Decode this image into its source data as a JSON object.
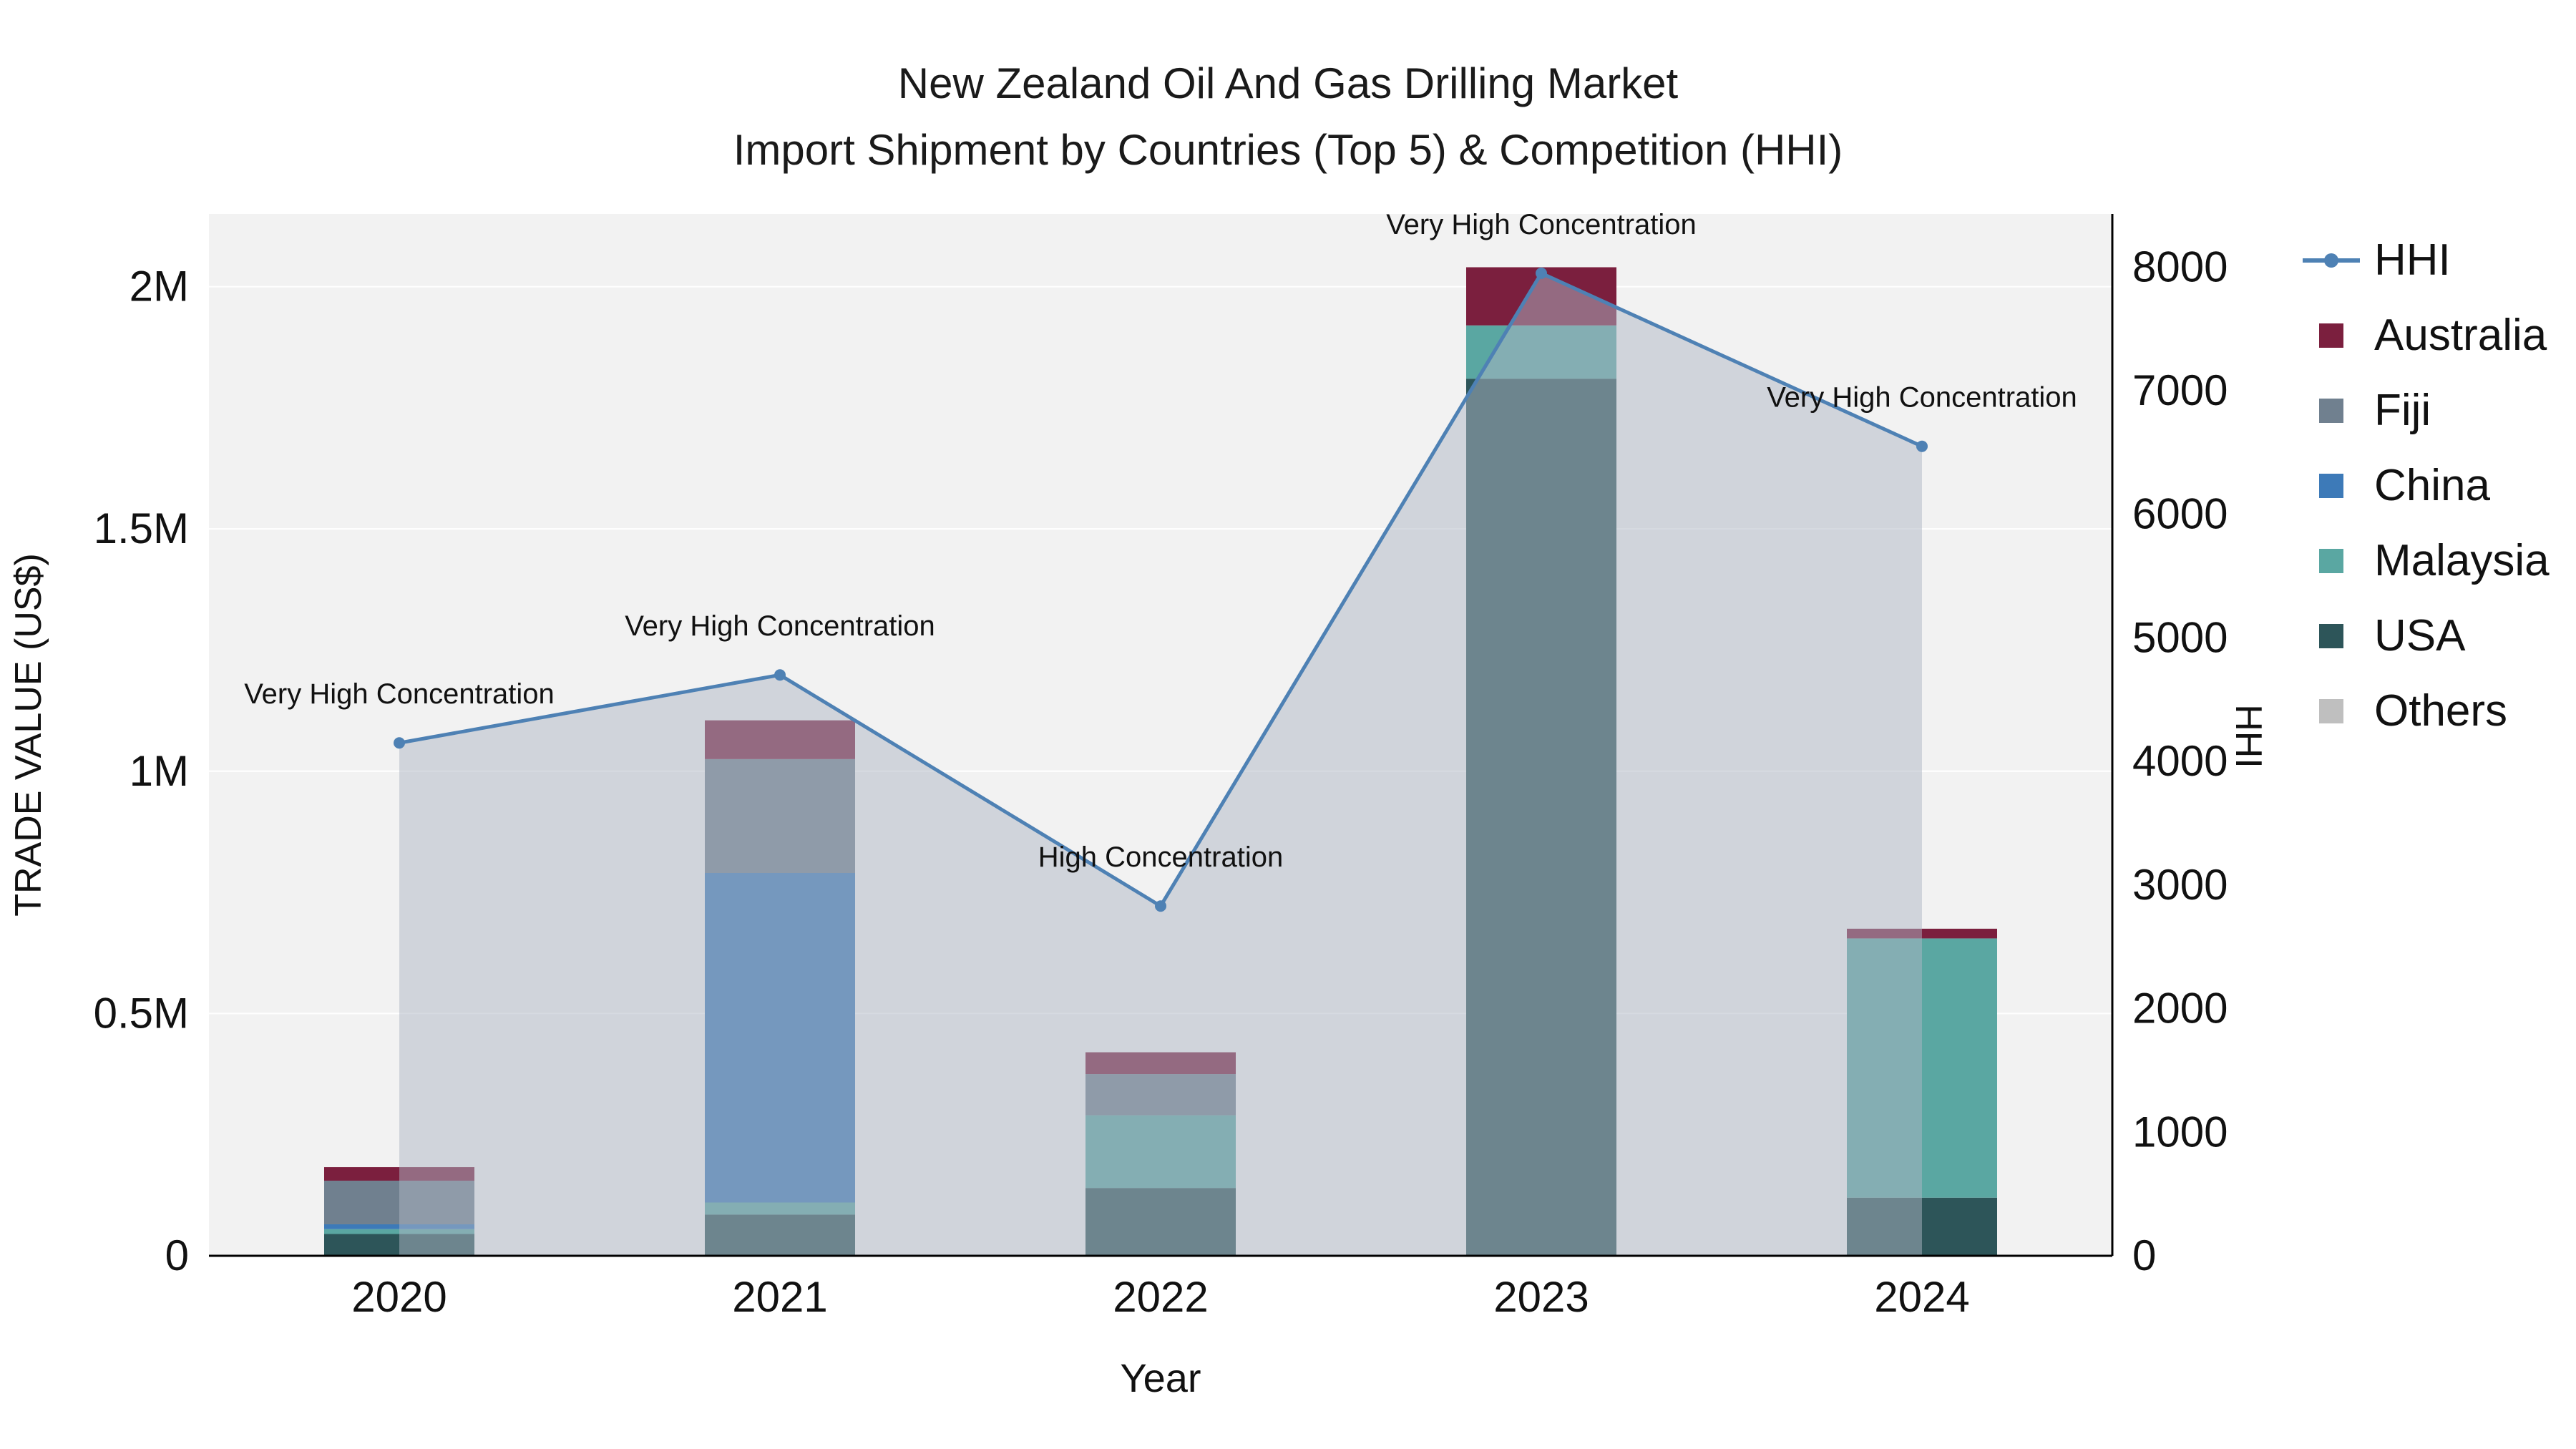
{
  "title": {
    "line1": "New Zealand Oil And Gas Drilling Market",
    "line2": "Import Shipment by Countries (Top 5) & Competition (HHI)"
  },
  "legend": {
    "items": [
      {
        "label": "HHI",
        "type": "line",
        "color": "#4e81b4"
      },
      {
        "label": "Australia",
        "type": "square",
        "color": "#7b1f3e"
      },
      {
        "label": "Fiji",
        "type": "square",
        "color": "#70808f"
      },
      {
        "label": "China",
        "type": "square",
        "color": "#3d7ab8"
      },
      {
        "label": "Malaysia",
        "type": "square",
        "color": "#5aa7a2"
      },
      {
        "label": "USA",
        "type": "square",
        "color": "#2d5559"
      },
      {
        "label": "Others",
        "type": "square",
        "color": "#bfbfbf"
      }
    ]
  },
  "chart_data": {
    "type": "combo-stacked-bar-line",
    "categories": [
      "2020",
      "2021",
      "2022",
      "2023",
      "2024"
    ],
    "xlabel": "Year",
    "bar_series": [
      {
        "name": "USA",
        "color": "#2d5559",
        "values": [
          45000,
          85000,
          140000,
          1810000,
          120000
        ]
      },
      {
        "name": "Malaysia",
        "color": "#5aa7a2",
        "values": [
          10000,
          25000,
          150000,
          110000,
          535000
        ]
      },
      {
        "name": "China",
        "color": "#3d7ab8",
        "values": [
          10000,
          680000,
          0,
          0,
          0
        ]
      },
      {
        "name": "Fiji",
        "color": "#70808f",
        "values": [
          90000,
          235000,
          85000,
          0,
          0
        ]
      },
      {
        "name": "Australia",
        "color": "#7b1f3e",
        "values": [
          28000,
          80000,
          45000,
          120000,
          20000
        ]
      },
      {
        "name": "Others",
        "color": "#bfbfbf",
        "values": [
          0,
          0,
          0,
          0,
          0
        ]
      }
    ],
    "line_series": {
      "name": "HHI",
      "color": "#4e81b4",
      "fill": "rgba(174,182,196,0.5)",
      "values": [
        4150,
        4700,
        2830,
        7950,
        6550
      ]
    },
    "annotations": [
      {
        "x": "2020",
        "text": "Very High Concentration"
      },
      {
        "x": "2021",
        "text": "Very High Concentration"
      },
      {
        "x": "2022",
        "text": "High Concentration"
      },
      {
        "x": "2023",
        "text": "Very High Concentration"
      },
      {
        "x": "2024",
        "text": "Very High Concentration"
      }
    ],
    "y_left": {
      "title": "TRADE VALUE (US$)",
      "range": [
        0,
        2150000
      ],
      "tick_vals": [
        0,
        500000,
        1000000,
        1500000,
        2000000
      ],
      "tick_labels": [
        "0",
        "0.5M",
        "1M",
        "1.5M",
        "2M"
      ]
    },
    "y_right": {
      "title": "HHI",
      "range": [
        0,
        8430
      ],
      "tick_step": 1000,
      "tick_max": 8000
    }
  }
}
